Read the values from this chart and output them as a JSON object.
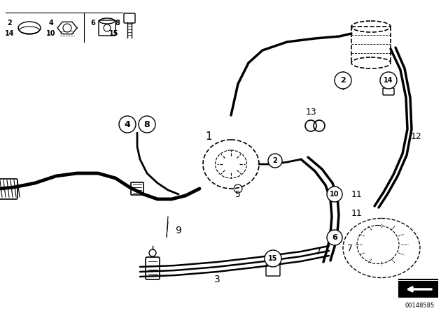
{
  "bg_color": "#ffffff",
  "line_color": "#000000",
  "diagram_code_id": "00148585",
  "lw_pipe": 2.0,
  "lw_thin": 1.0
}
